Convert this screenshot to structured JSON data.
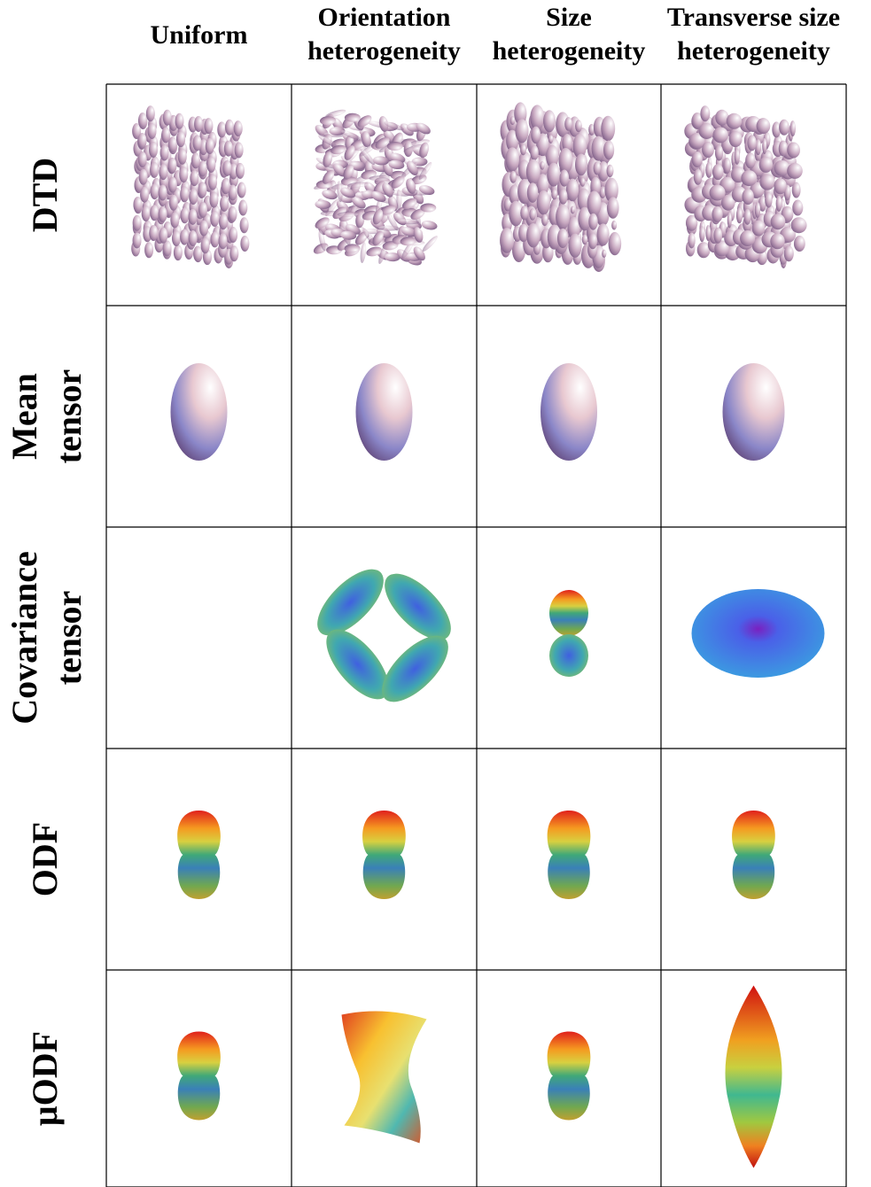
{
  "column_headers": [
    [
      "Uniform"
    ],
    [
      "Orientation",
      "heterogeneity"
    ],
    [
      "Size",
      "heterogeneity"
    ],
    [
      "Transverse size",
      "heterogeneity"
    ]
  ],
  "row_labels": [
    [
      "DTD"
    ],
    [
      "Mean",
      "tensor"
    ],
    [
      "Covariance",
      "tensor"
    ],
    [
      "ODF"
    ],
    [
      "μODF"
    ]
  ]
}
